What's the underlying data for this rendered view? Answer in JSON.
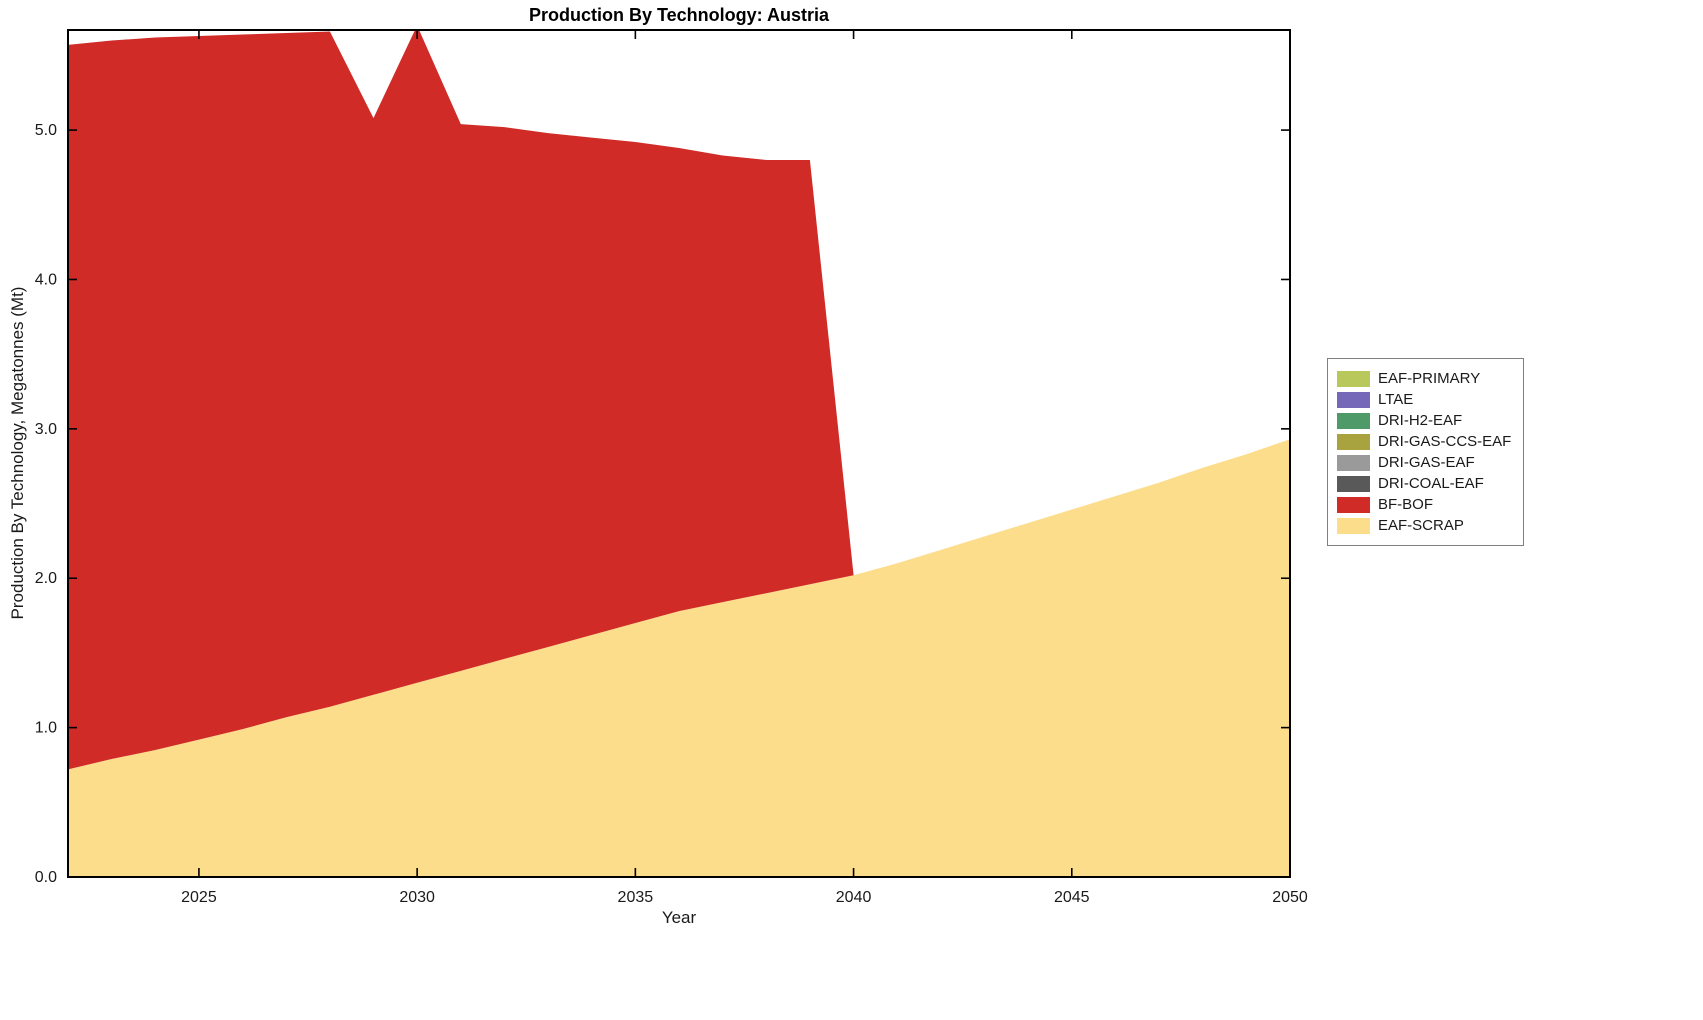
{
  "title": "Production By Technology: Austria",
  "chart_data": {
    "type": "area",
    "stacked": true,
    "title": "Production By Technology: Austria",
    "xlabel": "Year",
    "ylabel": "Production By Technology, Megatonnes (Mt)",
    "xlim": [
      2022,
      2050
    ],
    "ylim": [
      0,
      5.67
    ],
    "xticks": [
      2025,
      2030,
      2035,
      2040,
      2045,
      2050
    ],
    "yticks": [
      0,
      1,
      2,
      3,
      4,
      5
    ],
    "ytick_labels": [
      "0.0",
      "1.0",
      "2.0",
      "3.0",
      "4.0",
      "5.0"
    ],
    "grid": false,
    "legend_position": "right",
    "x": [
      2022,
      2023,
      2024,
      2025,
      2026,
      2027,
      2028,
      2029,
      2030,
      2031,
      2032,
      2033,
      2034,
      2035,
      2036,
      2037,
      2038,
      2039,
      2040,
      2041,
      2042,
      2043,
      2044,
      2045,
      2046,
      2047,
      2048,
      2049,
      2050
    ],
    "series": [
      {
        "name": "EAF-SCRAP",
        "color": "#fbdd8b",
        "values": [
          0.72,
          0.79,
          0.85,
          0.92,
          0.99,
          1.07,
          1.14,
          1.22,
          1.3,
          1.38,
          1.46,
          1.54,
          1.62,
          1.7,
          1.78,
          1.84,
          1.9,
          1.96,
          2.02,
          2.1,
          2.19,
          2.28,
          2.37,
          2.46,
          2.55,
          2.64,
          2.74,
          2.83,
          2.93
        ]
      },
      {
        "name": "BF-BOF",
        "color": "#d02b27",
        "values": [
          4.85,
          4.81,
          4.77,
          4.71,
          4.65,
          4.58,
          4.52,
          3.86,
          4.4,
          3.66,
          3.56,
          3.44,
          3.33,
          3.22,
          3.1,
          2.99,
          2.9,
          2.84,
          0,
          0,
          0,
          0,
          0,
          0,
          0,
          0,
          0,
          0,
          0
        ]
      },
      {
        "name": "DRI-COAL-EAF",
        "color": "#595959",
        "values": [
          0,
          0,
          0,
          0,
          0,
          0,
          0,
          0,
          0,
          0,
          0,
          0,
          0,
          0,
          0,
          0,
          0,
          0,
          0,
          0,
          0,
          0,
          0,
          0,
          0,
          0,
          0,
          0,
          0
        ]
      },
      {
        "name": "DRI-GAS-EAF",
        "color": "#9a9a9a",
        "values": [
          0,
          0,
          0,
          0,
          0,
          0,
          0,
          0,
          0,
          0,
          0,
          0,
          0,
          0,
          0,
          0,
          0,
          0,
          0,
          0,
          0,
          0,
          0,
          0,
          0,
          0,
          0,
          0,
          0
        ]
      },
      {
        "name": "DRI-GAS-CCS-EAF",
        "color": "#a8a23f",
        "values": [
          0,
          0,
          0,
          0,
          0,
          0,
          0,
          0,
          0,
          0,
          0,
          0,
          0,
          0,
          0,
          0,
          0,
          0,
          0,
          0,
          0,
          0,
          0,
          0,
          0,
          0,
          0,
          0,
          0
        ]
      },
      {
        "name": "DRI-H2-EAF",
        "color": "#4e9a68",
        "values": [
          0,
          0,
          0,
          0,
          0,
          0,
          0,
          0,
          0,
          0,
          0,
          0,
          0,
          0,
          0,
          0,
          0,
          0,
          0,
          0,
          0,
          0,
          0,
          0,
          0,
          0,
          0,
          0,
          0
        ]
      },
      {
        "name": "LTAE",
        "color": "#7668b8",
        "values": [
          0,
          0,
          0,
          0,
          0,
          0,
          0,
          0,
          0,
          0,
          0,
          0,
          0,
          0,
          0,
          0,
          0,
          0,
          0,
          0,
          0,
          0,
          0,
          0,
          0,
          0,
          0,
          0,
          0
        ]
      },
      {
        "name": "EAF-PRIMARY",
        "color": "#b9c85a",
        "values": [
          0,
          0,
          0,
          0,
          0,
          0,
          0,
          0,
          0,
          0,
          0,
          0,
          0,
          0,
          0,
          0,
          0,
          0,
          0,
          0,
          0,
          0,
          0,
          0,
          0,
          0,
          0,
          0,
          0
        ]
      }
    ],
    "legend": {
      "entries": [
        "EAF-PRIMARY",
        "LTAE",
        "DRI-H2-EAF",
        "DRI-GAS-CCS-EAF",
        "DRI-GAS-EAF",
        "DRI-COAL-EAF",
        "BF-BOF",
        "EAF-SCRAP"
      ]
    }
  }
}
